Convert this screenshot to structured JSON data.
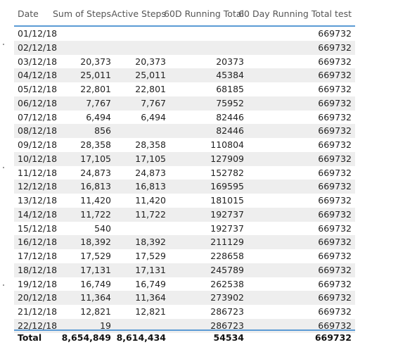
{
  "table": {
    "header": [
      "Date",
      "Sum of Steps",
      "Active Steps",
      "60D Running Total",
      "60 Day Running Total test"
    ],
    "rows": [
      [
        "01/12/18",
        null,
        null,
        null,
        "669732"
      ],
      [
        "02/12/18",
        null,
        null,
        null,
        "669732"
      ],
      [
        "03/12/18",
        "20,373",
        "20,373",
        "20373",
        "669732"
      ],
      [
        "04/12/18",
        "25,011",
        "25,011",
        "45384",
        "669732"
      ],
      [
        "05/12/18",
        "22,801",
        "22,801",
        "68185",
        "669732"
      ],
      [
        "06/12/18",
        "7,767",
        "7,767",
        "75952",
        "669732"
      ],
      [
        "07/12/18",
        "6,494",
        "6,494",
        "82446",
        "669732"
      ],
      [
        "08/12/18",
        "856",
        null,
        "82446",
        "669732"
      ],
      [
        "09/12/18",
        "28,358",
        "28,358",
        "110804",
        "669732"
      ],
      [
        "10/12/18",
        "17,105",
        "17,105",
        "127909",
        "669732"
      ],
      [
        "11/12/18",
        "24,873",
        "24,873",
        "152782",
        "669732"
      ],
      [
        "12/12/18",
        "16,813",
        "16,813",
        "169595",
        "669732"
      ],
      [
        "13/12/18",
        "11,420",
        "11,420",
        "181015",
        "669732"
      ],
      [
        "14/12/18",
        "11,722",
        "11,722",
        "192737",
        "669732"
      ],
      [
        "15/12/18",
        "540",
        null,
        "192737",
        "669732"
      ],
      [
        "16/12/18",
        "18,392",
        "18,392",
        "211129",
        "669732"
      ],
      [
        "17/12/18",
        "17,529",
        "17,529",
        "228658",
        "669732"
      ],
      [
        "18/12/18",
        "17,131",
        "17,131",
        "245789",
        "669732"
      ],
      [
        "19/12/18",
        "16,749",
        "16,749",
        "262538",
        "669732"
      ],
      [
        "20/12/18",
        "11,364",
        "11,364",
        "273902",
        "669732"
      ],
      [
        "21/12/18",
        "12,821",
        "12,821",
        "286723",
        "669732"
      ],
      [
        "22/12/18",
        "19",
        null,
        "286723",
        "669732"
      ]
    ],
    "total": [
      "Total",
      "8,654,849",
      "8,614,434",
      "54534",
      "669732"
    ]
  }
}
